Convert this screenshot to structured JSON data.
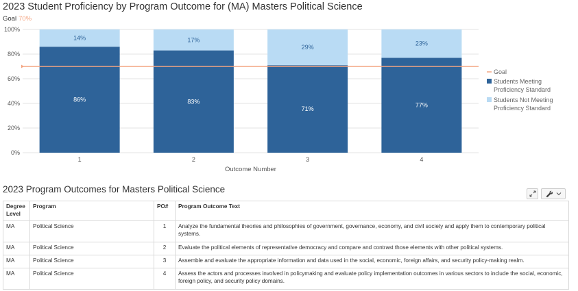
{
  "chart": {
    "title": "2023 Student Proficiency by Program Outcome for (MA) Masters Political Science",
    "goal_label": "Goal",
    "goal_value_label": "70%"
  },
  "chart_data": {
    "type": "bar",
    "stacked": true,
    "title": "2023 Student Proficiency by Program Outcome for (MA) Masters Political Science",
    "xlabel": "Outcome Number",
    "ylabel": "",
    "categories": [
      "1",
      "2",
      "3",
      "4"
    ],
    "series": [
      {
        "name": "Students Meeting Proficiency Standard",
        "values": [
          86,
          83,
          71,
          77
        ],
        "labels": [
          "86%",
          "83%",
          "71%",
          "77%"
        ],
        "color": "#2e6399"
      },
      {
        "name": "Students Not Meeting Proficiency Standard",
        "values": [
          14,
          17,
          29,
          23
        ],
        "labels": [
          "14%",
          "17%",
          "29%",
          "23%"
        ],
        "color": "#b9dbf4"
      }
    ],
    "goal": {
      "name": "Goal",
      "value": 70,
      "color": "#f4a582"
    },
    "ylim": [
      0,
      100
    ],
    "yticks": [
      0,
      20,
      40,
      60,
      80,
      100
    ],
    "ytick_labels": [
      "0%",
      "20%",
      "40%",
      "60%",
      "80%",
      "100%"
    ],
    "grid": true,
    "legend": {
      "position": "right",
      "entries": [
        "Goal",
        "Students Meeting Proficiency Standard",
        "Students Not Meeting Proficiency Standard"
      ]
    }
  },
  "legend_text": {
    "goal": [
      "Goal"
    ],
    "meeting": [
      "Students Meeting",
      "Proficiency Standard"
    ],
    "not_meeting": [
      "Students Not Meeting",
      "Proficiency Standard"
    ]
  },
  "table_section": {
    "title": "2023 Program Outcomes for Masters Political Science",
    "expand_icon": "expand-icon",
    "settings_icon": "wrench-icon",
    "dropdown_icon": "chevron-down-icon",
    "columns": [
      "Degree Level",
      "Program",
      "PO#",
      "Program Outcome Text"
    ],
    "rows": [
      {
        "level": "MA",
        "program": "Political Science",
        "po": "1",
        "text": "Analyze the fundamental theories and philosophies of government, governance, economy, and civil society and apply them to contemporary political systems."
      },
      {
        "level": "MA",
        "program": "Political Science",
        "po": "2",
        "text": "Evaluate the political elements of representative democracy and compare and contrast those elements with other political systems."
      },
      {
        "level": "MA",
        "program": "Political Science",
        "po": "3",
        "text": "Assemble and evaluate the appropriate information and data used in the social, economic, foreign affairs, and security policy-making realm."
      },
      {
        "level": "MA",
        "program": "Political Science",
        "po": "4",
        "text": "Assess the actors and processes involved in policymaking and evaluate policy implementation outcomes in various sectors to include the social, economic, foreign policy, and security policy domains."
      }
    ]
  }
}
